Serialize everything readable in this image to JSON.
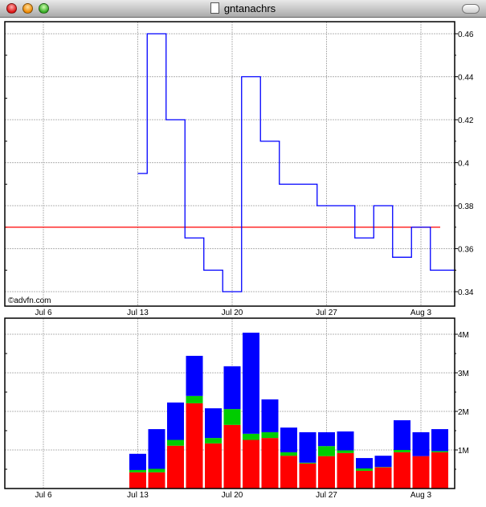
{
  "window": {
    "title": "gntanachrs"
  },
  "watermark": "©advfn.com",
  "colors": {
    "price_line": "#0000ff",
    "reference_line": "#ff0000",
    "volume_red": "#ff0000",
    "volume_green": "#00cc00",
    "volume_blue": "#0000ff",
    "grid": "#b4b4b4"
  },
  "chart_data": [
    {
      "type": "line",
      "step": true,
      "x_axis": {
        "type": "trading-days",
        "tick_labels": [
          "Jul 6",
          "Jul 13",
          "Jul 20",
          "Jul 27",
          "Aug 3"
        ]
      },
      "x": [
        "Jul 13",
        "Jul 14",
        "Jul 15",
        "Jul 16",
        "Jul 17",
        "Jul 20",
        "Jul 21",
        "Jul 22",
        "Jul 23",
        "Jul 24",
        "Jul 27",
        "Jul 28",
        "Jul 29",
        "Jul 30",
        "Jul 31",
        "Aug 3",
        "Aug 4"
      ],
      "values": [
        0.395,
        0.46,
        0.42,
        0.365,
        0.35,
        0.34,
        0.44,
        0.41,
        0.39,
        0.39,
        0.38,
        0.38,
        0.365,
        0.38,
        0.356,
        0.37,
        0.35
      ],
      "reference_line": 0.37,
      "ylim": [
        0.335,
        0.47
      ],
      "y_ticks": [
        0.34,
        0.36,
        0.38,
        0.4,
        0.42,
        0.44,
        0.46
      ],
      "y_tick_labels": [
        "0.34",
        "0.36",
        "0.38",
        "0.4",
        "0.42",
        "0.44",
        "0.46"
      ],
      "grid": true,
      "y_axis_side": "right"
    },
    {
      "type": "bar",
      "stacked": true,
      "x_axis": {
        "type": "trading-days",
        "tick_labels": [
          "Jul 6",
          "Jul 13",
          "Jul 20",
          "Jul 27",
          "Aug 3"
        ]
      },
      "categories": [
        "Jul 13",
        "Jul 14",
        "Jul 15",
        "Jul 16",
        "Jul 17",
        "Jul 20",
        "Jul 21",
        "Jul 22",
        "Jul 23",
        "Jul 24",
        "Jul 27",
        "Jul 28",
        "Jul 29",
        "Jul 30",
        "Jul 31",
        "Aug 3",
        "Aug 4"
      ],
      "series": [
        {
          "color": "#ff0000",
          "values": [
            0.42,
            0.42,
            1.11,
            2.21,
            1.17,
            1.65,
            1.26,
            1.31,
            0.85,
            0.65,
            0.84,
            0.92,
            0.46,
            0.55,
            0.94,
            0.84,
            0.94
          ]
        },
        {
          "color": "#00cc00",
          "values": [
            0.06,
            0.09,
            0.15,
            0.19,
            0.14,
            0.41,
            0.16,
            0.15,
            0.09,
            0.02,
            0.26,
            0.07,
            0.06,
            0.01,
            0.06,
            0,
            0.03
          ]
        },
        {
          "color": "#0000ff",
          "values": [
            0.42,
            1.03,
            0.97,
            1.04,
            0.77,
            1.11,
            2.62,
            0.85,
            0.64,
            0.79,
            0.36,
            0.49,
            0.27,
            0.29,
            0.77,
            0.62,
            0.57
          ]
        }
      ],
      "unit": "M",
      "ylim": [
        0,
        4.3
      ],
      "y_ticks": [
        1,
        2,
        3,
        4
      ],
      "y_tick_labels": [
        "1M",
        "2M",
        "3M",
        "4M"
      ],
      "grid": true,
      "y_axis_side": "right"
    }
  ]
}
